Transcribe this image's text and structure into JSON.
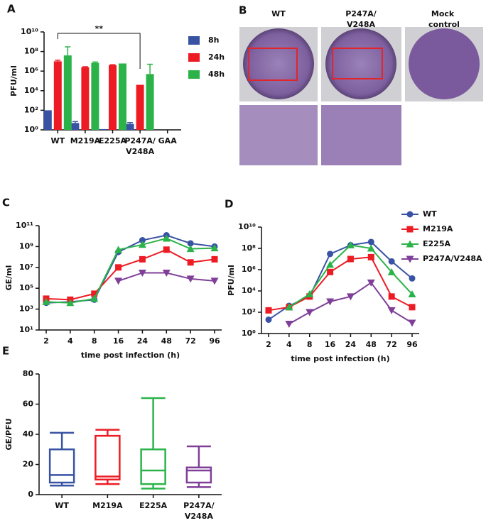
{
  "chart_data": [
    {
      "panel": "A",
      "type": "bar",
      "y_label": "PFU/ml",
      "categories": [
        "WT",
        "M219A",
        "E225A",
        "P247A/V248A",
        "GAA"
      ],
      "series": [
        {
          "name": "8h",
          "color": "#3953a4",
          "values": [
            100,
            5,
            1.2,
            4,
            null
          ],
          "errors": [
            null,
            2,
            null,
            1.5,
            null
          ]
        },
        {
          "name": "24h",
          "color": "#ed1c24",
          "values": [
            10000000,
            2500000,
            4000000,
            40000,
            null
          ],
          "errors": [
            3000000,
            300000,
            500000,
            null,
            null
          ]
        },
        {
          "name": "48h",
          "color": "#2bb34a",
          "values": [
            40000000,
            7000000,
            6000000,
            500000,
            null
          ],
          "errors": [
            260000000,
            1500000,
            null,
            4500000,
            null
          ]
        }
      ],
      "ylim": [
        1,
        10000000000
      ],
      "log_y": true,
      "yticks": [
        {
          "value": 1,
          "label": "10⁰"
        },
        {
          "value": 100,
          "label": "10²"
        },
        {
          "value": 10000,
          "label": "10⁴"
        },
        {
          "value": 1000000,
          "label": "10⁶"
        },
        {
          "value": 100000000,
          "label": "10⁸"
        },
        {
          "value": 10000000000,
          "label": "10¹⁰"
        }
      ],
      "annotation": "**",
      "legend": "upper right"
    },
    {
      "panel": "C",
      "type": "line",
      "x_label": "time post infection (h)",
      "y_label": "GE/ml",
      "categories": [
        "2",
        "4",
        "8",
        "16",
        "24",
        "48",
        "72",
        "96"
      ],
      "series": [
        {
          "name": "WT",
          "color": "#3953a4",
          "marker": "circle",
          "values": [
            4000,
            5000,
            8000,
            300000000,
            4000000000,
            12000000000,
            2000000000,
            1000000000
          ]
        },
        {
          "name": "M219A",
          "color": "#ed1c24",
          "marker": "square",
          "values": [
            10000,
            8000,
            30000,
            10000000,
            60000000,
            500000000,
            30000000,
            60000000
          ]
        },
        {
          "name": "E225A",
          "color": "#2bb34a",
          "marker": "triangle-up",
          "values": [
            5000,
            4000,
            10000,
            500000000,
            1500000000,
            6000000000,
            600000000,
            700000000
          ]
        },
        {
          "name": "P247A/V248A",
          "color": "#7f3f98",
          "marker": "triangle-down",
          "values": [
            null,
            null,
            null,
            500000,
            3000000,
            3000000,
            800000,
            500000
          ]
        }
      ],
      "ylim": [
        10,
        100000000000
      ],
      "log_y": true,
      "yticks": [
        {
          "value": 10,
          "label": "10¹"
        },
        {
          "value": 1000,
          "label": "10³"
        },
        {
          "value": 100000,
          "label": "10⁵"
        },
        {
          "value": 10000000,
          "label": "10⁷"
        },
        {
          "value": 1000000000,
          "label": "10⁹"
        },
        {
          "value": 100000000000,
          "label": "10¹¹"
        }
      ]
    },
    {
      "panel": "D",
      "type": "line",
      "x_label": "time post infection (h)",
      "y_label": "PFU/ml",
      "categories": [
        "2",
        "4",
        "8",
        "16",
        "24",
        "48",
        "72",
        "96"
      ],
      "series": [
        {
          "name": "WT",
          "color": "#3953a4",
          "marker": "circle",
          "values": [
            20,
            400,
            3000,
            30000000,
            200000000,
            400000000,
            6000000,
            150000
          ]
        },
        {
          "name": "M219A",
          "color": "#ed1c24",
          "marker": "square",
          "values": [
            150,
            300,
            3000,
            600000,
            10000000,
            15000000,
            3000,
            300
          ]
        },
        {
          "name": "E225A",
          "color": "#2bb34a",
          "marker": "triangle-up",
          "values": [
            null,
            300,
            5000,
            3000000,
            200000000,
            100000000,
            600000,
            5000
          ]
        },
        {
          "name": "P247A/V248A",
          "color": "#7f3f98",
          "marker": "triangle-down",
          "values": [
            null,
            8,
            100,
            1000,
            3000,
            60000,
            150,
            10
          ]
        }
      ],
      "ylim": [
        1,
        10000000000
      ],
      "log_y": true,
      "yticks": [
        {
          "value": 1,
          "label": "10⁰"
        },
        {
          "value": 100,
          "label": "10²"
        },
        {
          "value": 10000,
          "label": "10⁴"
        },
        {
          "value": 1000000,
          "label": "10⁶"
        },
        {
          "value": 100000000,
          "label": "10⁸"
        },
        {
          "value": 10000000000,
          "label": "10¹⁰"
        }
      ],
      "legend": "upper right"
    },
    {
      "panel": "E",
      "type": "box",
      "y_label": "GE/PFU",
      "categories": [
        "WT",
        "M219A",
        "E225A",
        "P247A/V248A"
      ],
      "colors": [
        "#3953a4",
        "#ed1c24",
        "#2bb34a",
        "#7f3f98"
      ],
      "boxes": [
        {
          "min": 6,
          "q1": 8,
          "median": 13,
          "q3": 30,
          "max": 41
        },
        {
          "min": 7,
          "q1": 10,
          "median": 12,
          "q3": 39,
          "max": 43
        },
        {
          "min": 4,
          "q1": 7,
          "median": 16,
          "q3": 30,
          "max": 64
        },
        {
          "min": 5,
          "q1": 8,
          "median": 16,
          "q3": 18,
          "max": 32
        }
      ],
      "ylim": [
        0,
        80
      ],
      "yticks": [
        0,
        20,
        40,
        60,
        80
      ]
    }
  ],
  "panel_b": {
    "label": "B",
    "columns": [
      "WT",
      "P247A/V248A",
      "Mock control"
    ]
  }
}
